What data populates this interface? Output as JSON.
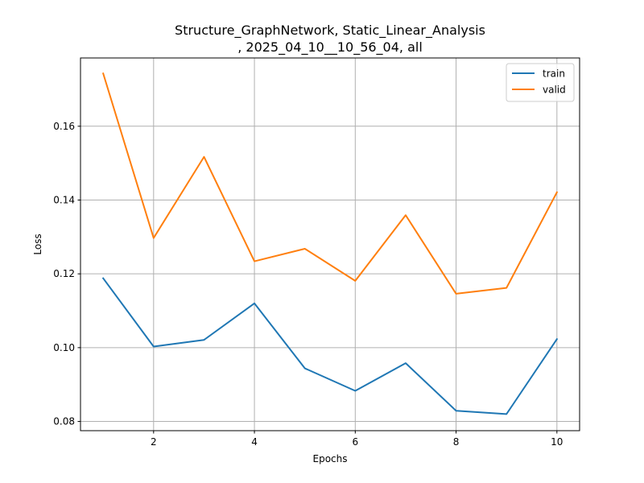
{
  "chart_data": {
    "type": "line",
    "title_line1": "Structure_GraphNetwork, Static_Linear_Analysis",
    "title_line2": ", 2025_04_10__10_56_04, all",
    "xlabel": "Epochs",
    "ylabel": "Loss",
    "x": [
      1,
      2,
      3,
      4,
      5,
      6,
      7,
      8,
      9,
      10
    ],
    "xlim": [
      0.55,
      10.45
    ],
    "ylim": [
      0.0775,
      0.1785
    ],
    "xticks": [
      2,
      4,
      6,
      8,
      10
    ],
    "xtick_labels": [
      "2",
      "4",
      "6",
      "8",
      "10"
    ],
    "yticks": [
      0.08,
      0.1,
      0.12,
      0.14,
      0.16
    ],
    "ytick_labels": [
      "0.08",
      "0.10",
      "0.12",
      "0.14",
      "0.16"
    ],
    "grid": true,
    "legend_position": "top-right",
    "series": [
      {
        "name": "train",
        "color": "#1f77b4",
        "values": [
          0.1188,
          0.1003,
          0.1021,
          0.112,
          0.0944,
          0.0883,
          0.0958,
          0.0829,
          0.082,
          0.1023
        ]
      },
      {
        "name": "valid",
        "color": "#ff7f0e",
        "values": [
          0.1743,
          0.1297,
          0.1517,
          0.1234,
          0.1268,
          0.1181,
          0.1359,
          0.1146,
          0.1162,
          0.1421
        ]
      }
    ]
  }
}
